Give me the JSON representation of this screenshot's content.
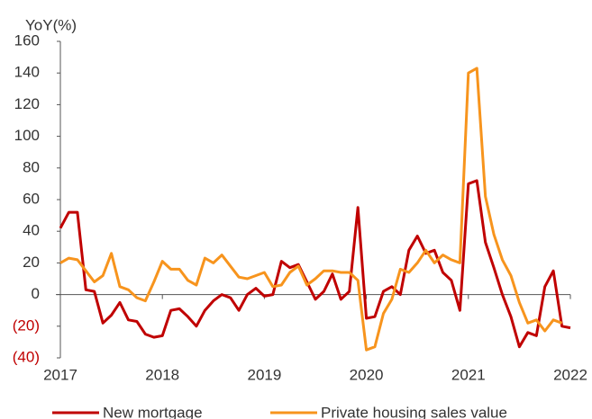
{
  "chart_data": {
    "type": "line",
    "y_axis_label": "YoY(%)",
    "xlim": [
      2017,
      2022
    ],
    "xticks": [
      2017,
      2018,
      2019,
      2020,
      2021,
      2022
    ],
    "ylim": [
      -40,
      160
    ],
    "yticks": [
      {
        "value": -40,
        "label": "(40)"
      },
      {
        "value": -20,
        "label": "(20)"
      },
      0,
      20,
      40,
      60,
      80,
      100,
      120,
      140,
      160
    ],
    "negative_tick_color": "#c00000",
    "grid": false,
    "legend": "bottom",
    "x": [
      2017,
      2017.0833,
      2017.1667,
      2017.25,
      2017.3333,
      2017.4167,
      2017.5,
      2017.5833,
      2017.6667,
      2017.75,
      2017.8333,
      2017.9167,
      2018,
      2018.0833,
      2018.1667,
      2018.25,
      2018.3333,
      2018.4167,
      2018.5,
      2018.5833,
      2018.6667,
      2018.75,
      2018.8333,
      2018.9167,
      2019,
      2019.0833,
      2019.1667,
      2019.25,
      2019.3333,
      2019.4167,
      2019.5,
      2019.5833,
      2019.6667,
      2019.75,
      2019.8333,
      2019.9167,
      2020,
      2020.0833,
      2020.1667,
      2020.25,
      2020.3333,
      2020.4167,
      2020.5,
      2020.5833,
      2020.6667,
      2020.75,
      2020.8333,
      2020.9167,
      2021,
      2021.0833,
      2021.1667,
      2021.25,
      2021.3333,
      2021.4167,
      2021.5,
      2021.5833,
      2021.6667,
      2021.75,
      2021.8333,
      2021.9167,
      2022
    ],
    "series": [
      {
        "name": "New mortgage",
        "color": "#c00000",
        "values": [
          42,
          52,
          52,
          3,
          2,
          -18,
          -13,
          -5,
          -16,
          -17,
          -25,
          -27,
          -26,
          -10,
          -9,
          -14,
          -20,
          -10,
          -4,
          0,
          -2,
          -10,
          0,
          4,
          -1,
          0,
          21,
          17,
          19,
          8,
          -3,
          2,
          13,
          -3,
          2,
          55,
          -15,
          -14,
          2,
          5,
          0,
          28,
          37,
          26,
          28,
          14,
          9,
          -10,
          70,
          72,
          33,
          17,
          0,
          -14,
          -33,
          -24,
          -26,
          5,
          15,
          -20,
          -21
        ]
      },
      {
        "name": "Private housing sales value",
        "color": "#f7941d",
        "values": [
          20,
          23,
          22,
          15,
          8,
          12,
          26,
          5,
          3,
          -2,
          -4,
          8,
          21,
          16,
          16,
          9,
          6,
          23,
          20,
          25,
          18,
          11,
          10,
          12,
          14,
          5,
          6,
          14,
          18,
          6,
          10,
          15,
          15,
          14,
          14,
          9,
          -35,
          -33,
          -12,
          -3,
          16,
          14,
          20,
          28,
          20,
          25,
          22,
          20,
          140,
          143,
          62,
          38,
          22,
          12,
          -5,
          -18,
          -16,
          -23,
          -16,
          -18,
          null
        ]
      }
    ]
  }
}
